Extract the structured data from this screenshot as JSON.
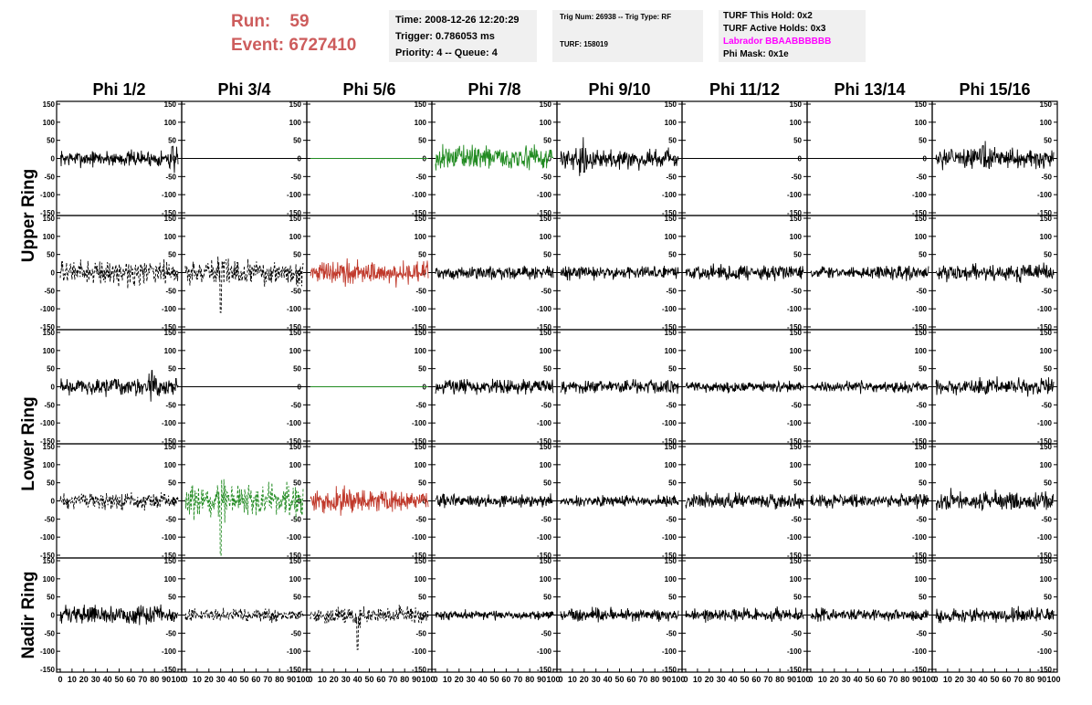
{
  "header": {
    "run_label": "Run:",
    "run_value": "59",
    "event_label": "Event:",
    "event_value": "6727410",
    "time_line": "Time: 2008-12-26 12:20:29",
    "trigger_line": "Trigger: 0.786053 ms",
    "priority_line": "Priority: 4 -- Queue: 4",
    "trig_line": "Trig Num: 26938 -- Trig Type: RF",
    "turf_line": "TURF: 158019",
    "turf_hold_line": "TURF This Hold: 0x2",
    "turf_active_line": "TURF Active Holds: 0x3",
    "labrador_line": "Labrador BBAABBBBBB",
    "phimask_line": "Phi Mask: 0x1e"
  },
  "colors": {
    "header_red": "#cd5c5c",
    "magenta": "#ff00ff",
    "trace_black": "#000000",
    "trace_green": "#228b22",
    "trace_red": "#c0392b"
  },
  "chart_data": {
    "type": "line",
    "column_titles": [
      "Phi 1/2",
      "Phi 3/4",
      "Phi 5/6",
      "Phi 7/8",
      "Phi 9/10",
      "Phi 11/12",
      "Phi 13/14",
      "Phi 15/16"
    ],
    "row_labels": [
      "Upper Ring",
      "Lower Ring",
      "Nadir Ring"
    ],
    "panel_rows": 5,
    "ylim": [
      -150,
      150
    ],
    "xlim": [
      0,
      100
    ],
    "yticks": [
      -150,
      -100,
      -50,
      0,
      50,
      100,
      150
    ],
    "xticks": [
      "0",
      "10",
      "20",
      "30",
      "40",
      "50",
      "60",
      "70",
      "80",
      "90",
      "100"
    ],
    "panels": [
      [
        {
          "style": "solid",
          "color": "black",
          "amp": 15,
          "spike": {
            "x": 95,
            "v": 32
          }
        },
        {
          "style": "flat",
          "color": "black",
          "amp": 0
        },
        {
          "style": "flat",
          "color": "green",
          "amp": 0
        },
        {
          "style": "solid",
          "color": "green",
          "amp": 22
        },
        {
          "style": "solid",
          "color": "black",
          "amp": 18,
          "spike": {
            "x": 20,
            "v": -38
          }
        },
        {
          "style": "flat",
          "color": "black",
          "amp": 0
        },
        {
          "style": "flat",
          "color": "black",
          "amp": 0
        },
        {
          "style": "solid",
          "color": "black",
          "amp": 18,
          "spike": {
            "x": 40,
            "v": 35
          }
        }
      ],
      [
        {
          "style": "dashed",
          "color": "black",
          "amp": 22
        },
        {
          "style": "dashed",
          "color": "black",
          "amp": 22,
          "spike": {
            "x": 30,
            "v": -110
          }
        },
        {
          "style": "solid",
          "color": "red",
          "amp": 22
        },
        {
          "style": "solid",
          "color": "black",
          "amp": 12
        },
        {
          "style": "solid",
          "color": "black",
          "amp": 12
        },
        {
          "style": "solid",
          "color": "black",
          "amp": 14
        },
        {
          "style": "solid",
          "color": "black",
          "amp": 12
        },
        {
          "style": "solid",
          "color": "black",
          "amp": 15
        }
      ],
      [
        {
          "style": "solid",
          "color": "black",
          "amp": 16,
          "spike": {
            "x": 78,
            "v": 45
          }
        },
        {
          "style": "flat",
          "color": "black",
          "amp": 0
        },
        {
          "style": "flat",
          "color": "green",
          "amp": 0
        },
        {
          "style": "solid",
          "color": "black",
          "amp": 14
        },
        {
          "style": "solid",
          "color": "black",
          "amp": 13
        },
        {
          "style": "solid",
          "color": "black",
          "amp": 10
        },
        {
          "style": "solid",
          "color": "black",
          "amp": 10
        },
        {
          "style": "solid",
          "color": "black",
          "amp": 15
        }
      ],
      [
        {
          "style": "dashed",
          "color": "black",
          "amp": 15
        },
        {
          "style": "dashed",
          "color": "green",
          "amp": 30,
          "spike": {
            "x": 30,
            "v": -150
          }
        },
        {
          "style": "solid",
          "color": "red",
          "amp": 22
        },
        {
          "style": "solid",
          "color": "black",
          "amp": 12
        },
        {
          "style": "solid",
          "color": "black",
          "amp": 10
        },
        {
          "style": "solid",
          "color": "black",
          "amp": 14
        },
        {
          "style": "solid",
          "color": "black",
          "amp": 12
        },
        {
          "style": "solid",
          "color": "black",
          "amp": 18
        }
      ],
      [
        {
          "style": "solid",
          "color": "black",
          "amp": 17
        },
        {
          "style": "dashed",
          "color": "black",
          "amp": 12
        },
        {
          "style": "dashed",
          "color": "black",
          "amp": 15,
          "spike": {
            "x": 40,
            "v": -95
          }
        },
        {
          "style": "solid",
          "color": "black",
          "amp": 9
        },
        {
          "style": "solid",
          "color": "black",
          "amp": 12
        },
        {
          "style": "solid",
          "color": "black",
          "amp": 12
        },
        {
          "style": "solid",
          "color": "black",
          "amp": 11
        },
        {
          "style": "solid",
          "color": "black",
          "amp": 13
        }
      ]
    ]
  }
}
